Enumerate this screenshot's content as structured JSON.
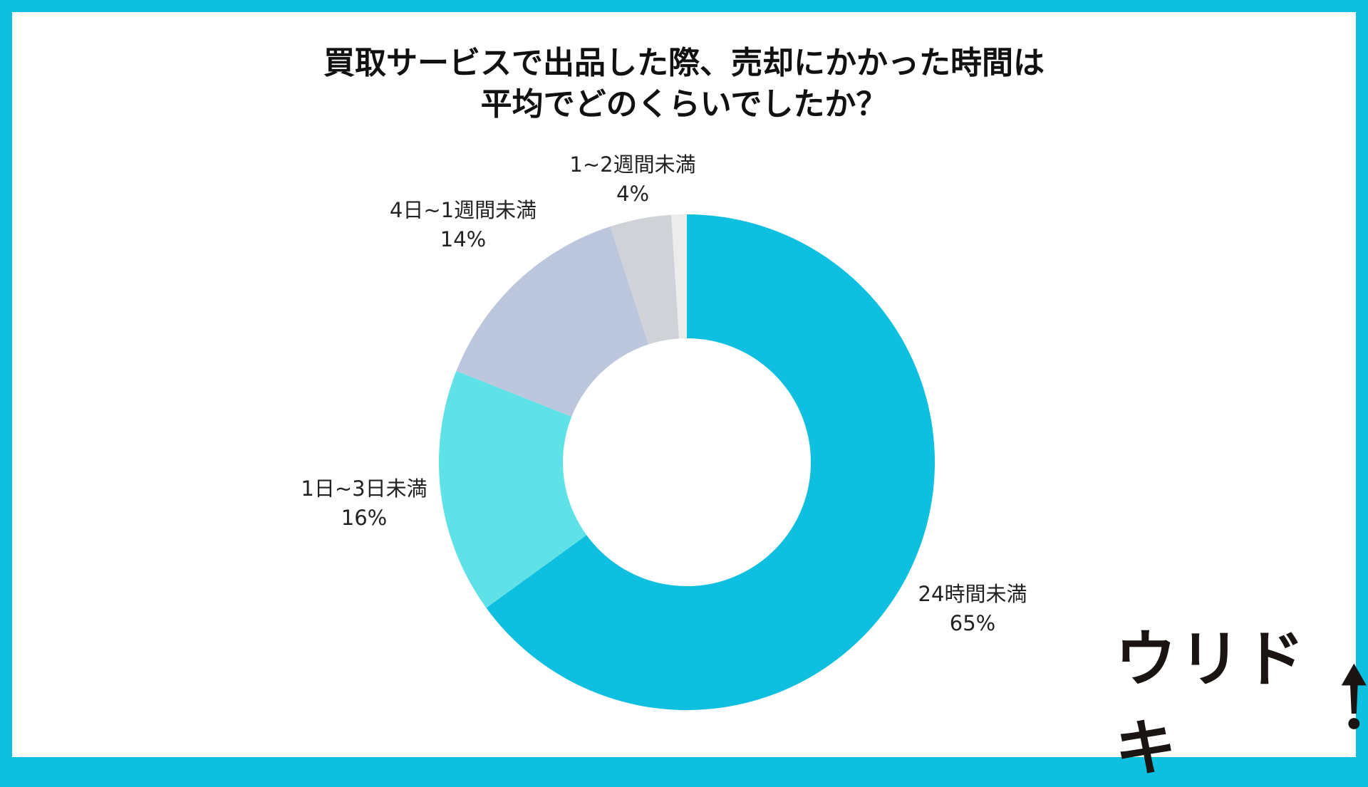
{
  "chart_data": {
    "type": "pie",
    "style": "donut",
    "title": [
      "買取サービスで出品した際、売却にかかった時間は",
      "平均でどのくらいでしたか？"
    ],
    "slices": [
      {
        "label": "24時間未満",
        "value": 65,
        "value_label": "65%",
        "color": "#0fbfdf"
      },
      {
        "label": "1日~3日未満",
        "value": 16,
        "value_label": "16%",
        "color": "#5fe1e8"
      },
      {
        "label": "4日~1週間未満",
        "value": 14,
        "value_label": "14%",
        "color": "#bcc6dc"
      },
      {
        "label": "1~2週間未満",
        "value": 4,
        "value_label": "4%",
        "color": "#cfd3d8"
      },
      {
        "label": "",
        "value": 1,
        "value_label": "",
        "color": "#ececec"
      }
    ],
    "start": "top",
    "direction": "clockwise"
  },
  "frame_color": "#0fbfdf",
  "logo": {
    "text": "ウリドキ"
  }
}
